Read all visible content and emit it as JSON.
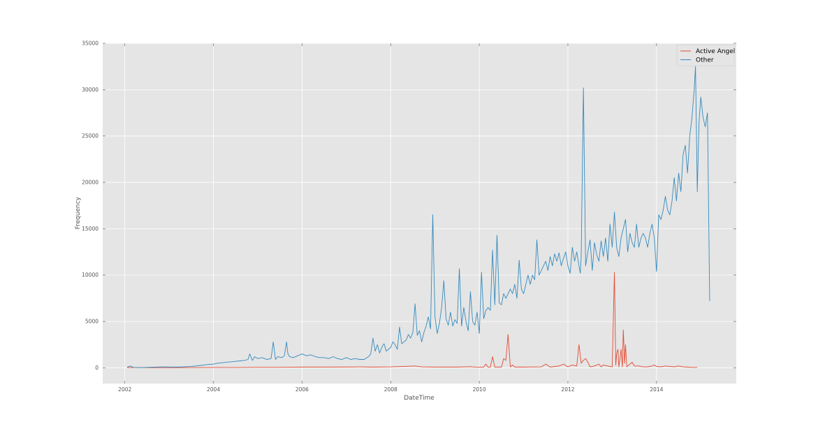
{
  "chart_data": {
    "type": "line",
    "title": "",
    "xlabel": "DateTime",
    "ylabel": "Frequency",
    "xlim": [
      2001.5,
      2015.8
    ],
    "ylim": [
      -1700,
      35000
    ],
    "xticks": [
      2002,
      2004,
      2006,
      2008,
      2010,
      2012,
      2014
    ],
    "xtick_labels": [
      "2002",
      "2004",
      "2006",
      "2008",
      "2010",
      "2012",
      "2014"
    ],
    "yticks": [
      0,
      5000,
      10000,
      15000,
      20000,
      25000,
      30000,
      35000
    ],
    "ytick_labels": [
      "0",
      "5000",
      "10000",
      "15000",
      "20000",
      "25000",
      "30000",
      "35000"
    ],
    "grid": true,
    "legend_position": "top-right",
    "series": [
      {
        "name": "Active Angel",
        "color": "#e24a33",
        "x": [
          2002.05,
          2002.5,
          2003,
          2003.5,
          2004,
          2004.5,
          2005,
          2005.5,
          2006,
          2006.5,
          2007,
          2007.3,
          2007.6,
          2008,
          2008.3,
          2008.55,
          2008.7,
          2009,
          2009.5,
          2009.8,
          2009.95,
          2010.1,
          2010.15,
          2010.2,
          2010.25,
          2010.3,
          2010.35,
          2010.5,
          2010.55,
          2010.6,
          2010.65,
          2010.7,
          2010.75,
          2010.8,
          2011,
          2011.4,
          2011.5,
          2011.6,
          2011.8,
          2011.9,
          2012,
          2012.1,
          2012.2,
          2012.25,
          2012.3,
          2012.35,
          2012.4,
          2012.45,
          2012.5,
          2012.6,
          2012.7,
          2012.75,
          2012.8,
          2012.9,
          2013,
          2013.05,
          2013.08,
          2013.1,
          2013.13,
          2013.15,
          2013.18,
          2013.2,
          2013.23,
          2013.25,
          2013.28,
          2013.3,
          2013.33,
          2013.35,
          2013.4,
          2013.45,
          2013.5,
          2013.6,
          2013.7,
          2013.8,
          2013.9,
          2013.95,
          2014,
          2014.1,
          2014.2,
          2014.3,
          2014.4,
          2014.5,
          2014.6,
          2014.7,
          2014.8,
          2014.92
        ],
        "values": [
          40,
          20,
          20,
          30,
          40,
          40,
          60,
          60,
          80,
          80,
          90,
          100,
          80,
          100,
          150,
          200,
          100,
          80,
          80,
          120,
          60,
          80,
          400,
          60,
          80,
          1200,
          80,
          80,
          1000,
          800,
          3600,
          100,
          300,
          80,
          80,
          100,
          400,
          80,
          200,
          400,
          100,
          300,
          200,
          2500,
          500,
          800,
          1000,
          600,
          100,
          200,
          400,
          100,
          300,
          200,
          100,
          10300,
          300,
          1500,
          2000,
          100,
          1200,
          2000,
          100,
          4100,
          500,
          2500,
          100,
          200,
          400,
          600,
          200,
          200,
          100,
          100,
          200,
          300,
          150,
          100,
          200,
          150,
          100,
          200,
          100,
          80,
          50,
          50
        ]
      },
      {
        "name": "Other",
        "color": "#348abd",
        "x": [
          2002.05,
          2002.12,
          2002.2,
          2002.35,
          2002.5,
          2002.7,
          2002.9,
          2003.1,
          2003.3,
          2003.5,
          2003.7,
          2003.85,
          2004,
          2004.1,
          2004.2,
          2004.3,
          2004.4,
          2004.5,
          2004.6,
          2004.7,
          2004.78,
          2004.82,
          2004.88,
          2004.93,
          2005,
          2005.1,
          2005.2,
          2005.3,
          2005.35,
          2005.4,
          2005.45,
          2005.55,
          2005.6,
          2005.65,
          2005.68,
          2005.72,
          2005.8,
          2005.9,
          2006,
          2006.1,
          2006.2,
          2006.3,
          2006.4,
          2006.5,
          2006.6,
          2006.7,
          2006.8,
          2006.9,
          2007,
          2007.1,
          2007.2,
          2007.3,
          2007.4,
          2007.5,
          2007.55,
          2007.6,
          2007.65,
          2007.7,
          2007.75,
          2007.8,
          2007.85,
          2007.9,
          2007.95,
          2008,
          2008.05,
          2008.1,
          2008.15,
          2008.2,
          2008.25,
          2008.3,
          2008.35,
          2008.4,
          2008.45,
          2008.5,
          2008.55,
          2008.6,
          2008.65,
          2008.7,
          2008.75,
          2008.8,
          2008.85,
          2008.9,
          2008.95,
          2009,
          2009.05,
          2009.1,
          2009.15,
          2009.2,
          2009.25,
          2009.3,
          2009.35,
          2009.4,
          2009.45,
          2009.5,
          2009.55,
          2009.6,
          2009.65,
          2009.7,
          2009.75,
          2009.8,
          2009.85,
          2009.9,
          2009.95,
          2010,
          2010.05,
          2010.1,
          2010.15,
          2010.2,
          2010.25,
          2010.3,
          2010.35,
          2010.4,
          2010.45,
          2010.5,
          2010.55,
          2010.6,
          2010.65,
          2010.7,
          2010.75,
          2010.8,
          2010.85,
          2010.9,
          2010.95,
          2011,
          2011.05,
          2011.1,
          2011.15,
          2011.2,
          2011.25,
          2011.3,
          2011.35,
          2011.4,
          2011.45,
          2011.5,
          2011.55,
          2011.6,
          2011.65,
          2011.7,
          2011.75,
          2011.8,
          2011.85,
          2011.9,
          2011.95,
          2012,
          2012.05,
          2012.1,
          2012.15,
          2012.2,
          2012.25,
          2012.28,
          2012.3,
          2012.35,
          2012.4,
          2012.45,
          2012.5,
          2012.55,
          2012.6,
          2012.65,
          2012.7,
          2012.75,
          2012.8,
          2012.85,
          2012.9,
          2012.95,
          2013,
          2013.05,
          2013.1,
          2013.15,
          2013.2,
          2013.25,
          2013.3,
          2013.35,
          2013.4,
          2013.45,
          2013.5,
          2013.55,
          2013.6,
          2013.65,
          2013.7,
          2013.75,
          2013.8,
          2013.85,
          2013.9,
          2013.95,
          2014,
          2014.05,
          2014.1,
          2014.15,
          2014.2,
          2014.25,
          2014.3,
          2014.35,
          2014.4,
          2014.45,
          2014.5,
          2014.55,
          2014.6,
          2014.65,
          2014.7,
          2014.75,
          2014.8,
          2014.85,
          2014.88,
          2014.92,
          2014.96,
          2015,
          2015.05,
          2015.1,
          2015.15,
          2015.2
        ],
        "values": [
          50,
          200,
          50,
          20,
          50,
          80,
          100,
          80,
          100,
          150,
          250,
          350,
          400,
          500,
          550,
          600,
          650,
          700,
          750,
          800,
          900,
          1500,
          800,
          1200,
          1000,
          1100,
          900,
          1000,
          2800,
          900,
          1200,
          1100,
          1300,
          2800,
          1500,
          1200,
          1100,
          1300,
          1500,
          1300,
          1400,
          1200,
          1100,
          1100,
          1000,
          1200,
          1000,
          900,
          1100,
          900,
          1000,
          900,
          900,
          1200,
          1500,
          3200,
          1800,
          2500,
          1600,
          2200,
          2600,
          1800,
          2000,
          2200,
          2800,
          2500,
          2000,
          4400,
          2600,
          2800,
          3000,
          3600,
          3200,
          3800,
          6900,
          3500,
          4000,
          2800,
          3800,
          4500,
          5500,
          4200,
          16500,
          5500,
          3700,
          4800,
          6500,
          9400,
          5300,
          4600,
          6000,
          4500,
          5200,
          4800,
          10700,
          4500,
          6500,
          5000,
          4000,
          8200,
          5000,
          4600,
          6000,
          3700,
          10300,
          5300,
          6200,
          6500,
          6200,
          12700,
          6800,
          14300,
          7000,
          6800,
          8000,
          7500,
          8000,
          8500,
          8000,
          9000,
          7500,
          11600,
          8500,
          8000,
          9000,
          10000,
          9000,
          10000,
          9500,
          13800,
          10000,
          10500,
          11000,
          11500,
          10500,
          12000,
          11000,
          12300,
          11500,
          12400,
          11000,
          11800,
          12500,
          11000,
          10200,
          13000,
          11500,
          12500,
          11000,
          10200,
          12000,
          30200,
          11000,
          12500,
          13800,
          10500,
          13500,
          12200,
          11500,
          13700,
          12000,
          14000,
          11500,
          15500,
          13000,
          16800,
          13000,
          12000,
          14000,
          15000,
          16000,
          12500,
          14500,
          13500,
          13000,
          15500,
          13000,
          14000,
          14500,
          14000,
          13000,
          14500,
          15500,
          14000,
          10400,
          16500,
          16000,
          17000,
          18500,
          17000,
          16500,
          18000,
          20500,
          18000,
          21000,
          19000,
          23000,
          24000,
          21000,
          25000,
          27000,
          30000,
          32500,
          19000,
          26500,
          29200,
          27000,
          26000,
          27500,
          7200
        ]
      }
    ]
  }
}
